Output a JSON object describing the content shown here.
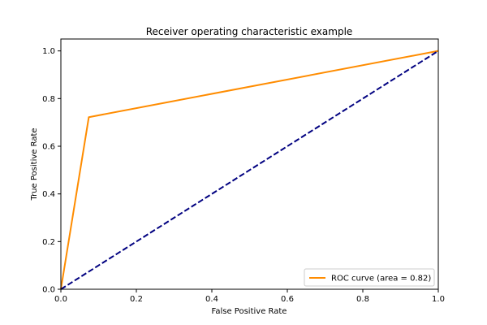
{
  "chart_data": {
    "type": "line",
    "title": "Receiver operating characteristic example",
    "xlabel": "False Positive Rate",
    "ylabel": "True Positive Rate",
    "xlim": [
      0.0,
      1.0
    ],
    "ylim": [
      0.0,
      1.05
    ],
    "xticks": [
      "0.0",
      "0.2",
      "0.4",
      "0.6",
      "0.8",
      "1.0"
    ],
    "yticks": [
      "0.0",
      "0.2",
      "0.4",
      "0.6",
      "0.8",
      "1.0"
    ],
    "grid": false,
    "legend_position": "lower-right",
    "series": [
      {
        "name": "ROC curve (area = 0.82)",
        "x": [
          0.0,
          0.074,
          1.0
        ],
        "y": [
          0.0,
          0.722,
          1.0
        ],
        "color": "#ff8c00",
        "style": "solid"
      },
      {
        "name": "",
        "x": [
          0.0,
          1.0
        ],
        "y": [
          0.0,
          1.0
        ],
        "color": "#000080",
        "style": "dashed"
      }
    ]
  }
}
